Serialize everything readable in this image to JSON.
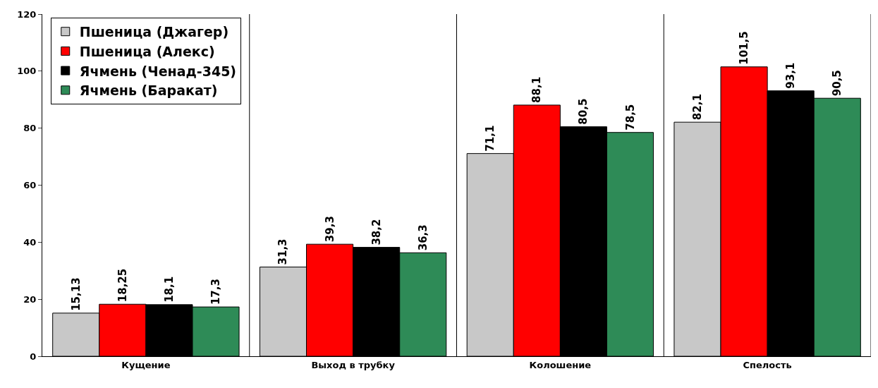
{
  "chart_data": {
    "type": "bar",
    "categories": [
      "Кущение",
      "Выход в трубку",
      "Колошение",
      "Спелость"
    ],
    "series": [
      {
        "name": "Пшеница (Джагер)",
        "color": "#c8c8c8",
        "values": [
          15.13,
          31.3,
          71.1,
          82.1
        ],
        "value_labels": [
          "15,13",
          "31,3",
          "71,1",
          "82,1"
        ]
      },
      {
        "name": "Пшеница (Алекс)",
        "color": "#ff0000",
        "values": [
          18.25,
          39.3,
          88.1,
          101.5
        ],
        "value_labels": [
          "18,25",
          "39,3",
          "88,1",
          "101,5"
        ]
      },
      {
        "name": "Ячмень (Ченад-345)",
        "color": "#000000",
        "values": [
          18.1,
          38.2,
          80.5,
          93.1
        ],
        "value_labels": [
          "18,1",
          "38,2",
          "80,5",
          "93,1"
        ]
      },
      {
        "name": "Ячмень (Баракат)",
        "color": "#2e8b57",
        "values": [
          17.3,
          36.3,
          78.5,
          90.5
        ],
        "value_labels": [
          "17,3",
          "36,3",
          "78,5",
          "90,5"
        ]
      }
    ],
    "ylim": [
      0,
      120
    ],
    "yticks": [
      0,
      20,
      40,
      60,
      80,
      100,
      120
    ],
    "grid": "x",
    "legend": "top left"
  }
}
